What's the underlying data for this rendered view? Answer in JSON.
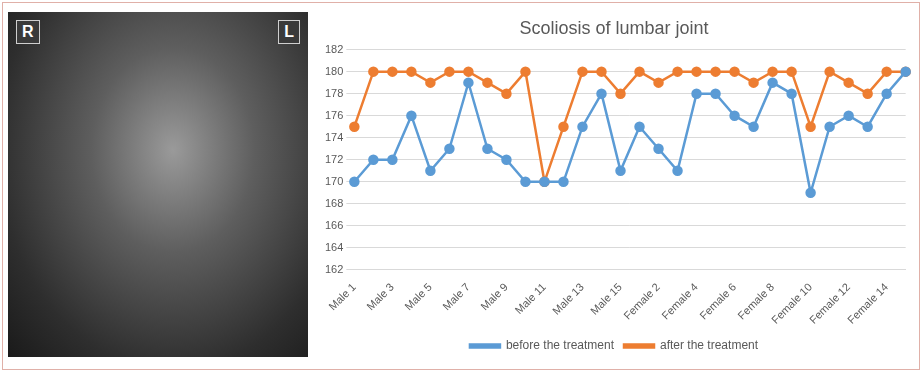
{
  "image": {
    "markers": [
      "R",
      "L"
    ]
  },
  "chart_data": {
    "type": "line",
    "title": "Scoliosis of lumbar joint",
    "categories": [
      "Male 1",
      null,
      "Male 3",
      null,
      "Male 5",
      null,
      "Male 7",
      null,
      "Male 9",
      null,
      "Male 11",
      null,
      "Male 13",
      null,
      "Male 15",
      null,
      "Female 2",
      null,
      "Female 4",
      null,
      "Female 6",
      null,
      "Female 8",
      null,
      "Female 10",
      null,
      "Female 12",
      null,
      "Female 14",
      null
    ],
    "series": [
      {
        "name": "before the treatment",
        "color": "#5b9bd5",
        "marker": "circle",
        "values": [
          170,
          172,
          172,
          176,
          171,
          173,
          179,
          173,
          172,
          170,
          170,
          170,
          175,
          178,
          171,
          175,
          173,
          171,
          178,
          178,
          176,
          175,
          179,
          178,
          169,
          175,
          176,
          175,
          178,
          180
        ]
      },
      {
        "name": "after the treatment",
        "color": "#ed7d31",
        "marker": "circle",
        "values": [
          175,
          180,
          180,
          180,
          179,
          180,
          180,
          179,
          178,
          180,
          170,
          175,
          180,
          180,
          178,
          180,
          179,
          180,
          180,
          180,
          180,
          179,
          180,
          180,
          175,
          180,
          179,
          178,
          180,
          180
        ]
      }
    ],
    "ylim": [
      162,
      182
    ],
    "yticks": [
      162,
      164,
      166,
      168,
      170,
      172,
      174,
      176,
      178,
      180,
      182
    ],
    "grid": true,
    "legend": "bottom"
  }
}
